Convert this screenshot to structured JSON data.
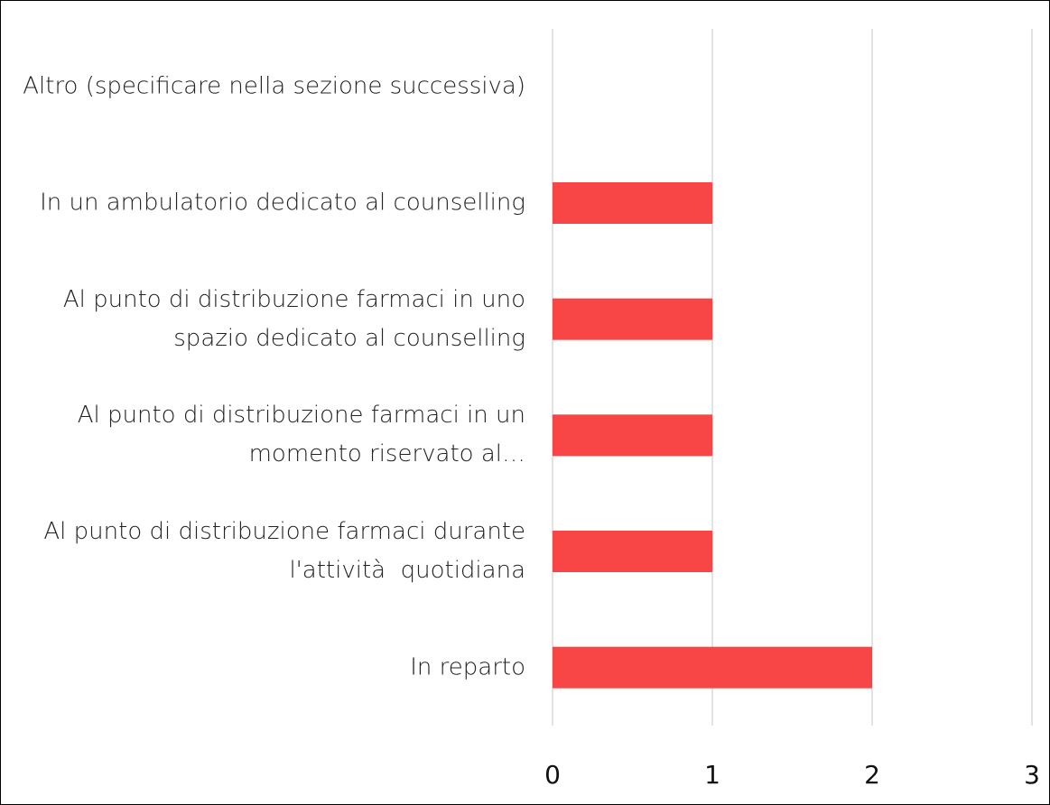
{
  "chart_data": {
    "type": "bar",
    "orientation": "horizontal",
    "categories": [
      "Altro (specificare nella sezione successiva)",
      "In un ambulatorio dedicato al counselling",
      "Al punto di distribuzione farmaci in uno spazio dedicato al counselling",
      "Al punto di distribuzione farmaci in un momento riservato al…",
      "Al punto di distribuzione farmaci durante l'attività  quotidiana",
      "In reparto"
    ],
    "values": [
      0,
      1,
      1,
      1,
      1,
      2
    ],
    "color": "#f84646",
    "xlim": [
      0,
      3
    ],
    "xticks": [
      0,
      1,
      2,
      3
    ],
    "grid": true
  }
}
